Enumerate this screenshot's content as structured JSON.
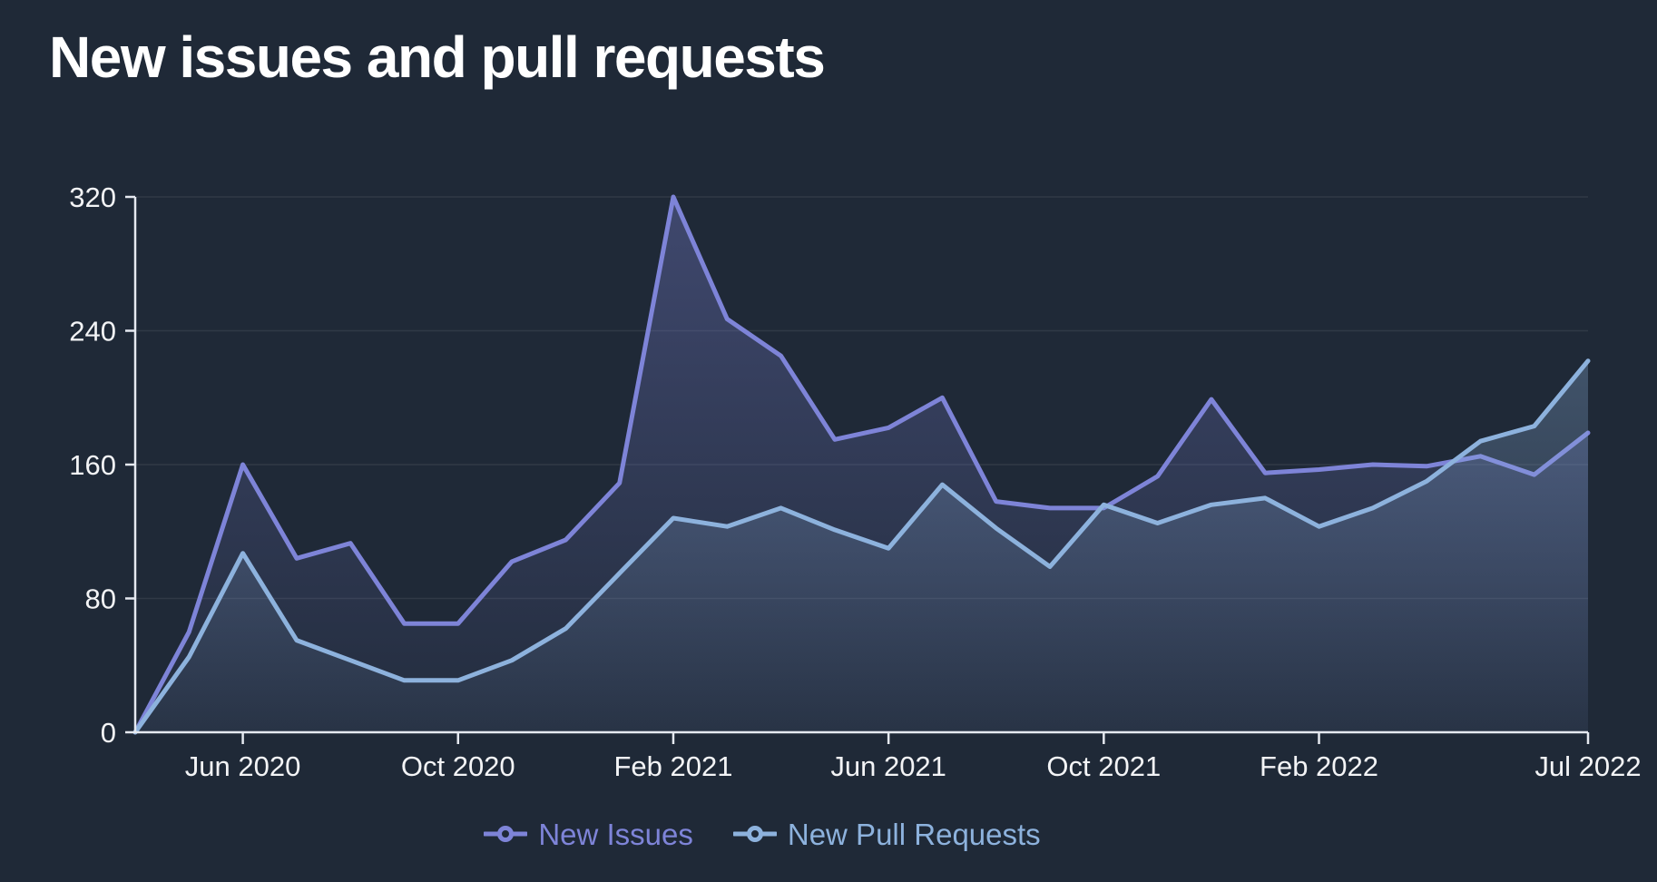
{
  "title": "New issues and pull requests",
  "colors": {
    "background": "#1f2937",
    "axis_line": "#e5e9f0",
    "grid_line": "rgba(255,255,255,0.08)",
    "tick_label": "#f3f4f6"
  },
  "axis": {
    "y_tick_labels": [
      "0",
      "80",
      "160",
      "240",
      "320"
    ],
    "x_tick_labels": [
      "Jun 2020",
      "Oct 2020",
      "Feb 2021",
      "Jun 2021",
      "Oct 2021",
      "Feb 2022",
      "Jul 2022"
    ]
  },
  "legend": {
    "items": [
      "New Issues",
      "New Pull Requests"
    ]
  },
  "chart_data": {
    "type": "line",
    "title": "New issues and pull requests",
    "x": [
      "Apr 2020",
      "May 2020",
      "Jun 2020",
      "Jul 2020",
      "Aug 2020",
      "Sep 2020",
      "Oct 2020",
      "Nov 2020",
      "Dec 2020",
      "Jan 2021",
      "Feb 2021",
      "Mar 2021",
      "Apr 2021",
      "May 2021",
      "Jun 2021",
      "Jul 2021",
      "Aug 2021",
      "Sep 2021",
      "Oct 2021",
      "Nov 2021",
      "Dec 2021",
      "Jan 2022",
      "Feb 2022",
      "Mar 2022",
      "Apr 2022",
      "May 2022",
      "Jun 2022",
      "Jul 2022"
    ],
    "x_tick_indices": [
      2,
      6,
      10,
      14,
      18,
      22,
      27
    ],
    "y_ticks": [
      0,
      80,
      160,
      240,
      320
    ],
    "ylim": [
      0,
      320
    ],
    "grid": "horizontal-only",
    "legend_position": "bottom",
    "area_fill": true,
    "series": [
      {
        "name": "New Issues",
        "color": "#7e84d8",
        "values": [
          0,
          60,
          160,
          104,
          113,
          65,
          65,
          102,
          115,
          149,
          320,
          247,
          225,
          175,
          182,
          200,
          138,
          134,
          134,
          153,
          199,
          155,
          157,
          160,
          159,
          165,
          154,
          179
        ]
      },
      {
        "name": "New Pull Requests",
        "color": "#8db2dd",
        "values": [
          0,
          45,
          107,
          55,
          43,
          31,
          31,
          43,
          62,
          95,
          128,
          123,
          134,
          121,
          110,
          148,
          122,
          99,
          136,
          125,
          136,
          140,
          123,
          134,
          150,
          174,
          183,
          222
        ]
      }
    ]
  }
}
